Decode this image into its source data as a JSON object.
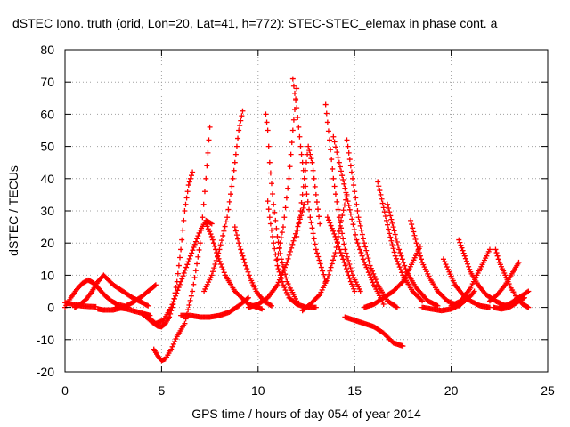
{
  "chart_data": {
    "type": "scatter",
    "title": "dSTEC Iono. truth (orid, Lon=20, Lat=41, h=772): STEC-STEC_elemax in phase cont. a",
    "xlabel": "GPS time / hours of day 054 of year 2014",
    "ylabel": "dSTEC  / TECUs",
    "xlim": [
      0,
      25
    ],
    "ylim": [
      -20,
      80
    ],
    "xticks": [
      0,
      5,
      10,
      15,
      20,
      25
    ],
    "yticks": [
      -20,
      -10,
      0,
      10,
      20,
      30,
      40,
      50,
      60,
      70,
      80
    ],
    "xtick_labels": [
      "0",
      "5",
      "10",
      "15",
      "20",
      "25"
    ],
    "ytick_labels": [
      "-20",
      "-10",
      "0",
      "10",
      "20",
      "30",
      "40",
      "50",
      "60",
      "70",
      "80"
    ],
    "grid": true,
    "legend": "none",
    "marker": "+",
    "color": "#ff0000",
    "series": [
      {
        "x": [
          0.0,
          0.4,
          0.8,
          1.2,
          1.6
        ],
        "y": [
          1.5,
          1.0,
          0.5,
          0.3,
          0.2
        ]
      },
      {
        "x": [
          0.0,
          0.3,
          0.6,
          0.9,
          1.2,
          1.5,
          1.8,
          2.1,
          2.4,
          2.7,
          3.0,
          3.3
        ],
        "y": [
          0.0,
          3.0,
          5.5,
          7.5,
          8.5,
          7.5,
          5.5,
          3.5,
          2.0,
          1.0,
          0.5,
          0.0
        ]
      },
      {
        "x": [
          0.5,
          0.8,
          1.1,
          1.4,
          1.7,
          2.0,
          2.5,
          3.0,
          3.5,
          4.0,
          4.3
        ],
        "y": [
          0.0,
          1.0,
          2.5,
          5.0,
          8.0,
          10.0,
          7.0,
          5.0,
          3.0,
          1.5,
          0.5
        ]
      },
      {
        "x": [
          1.7,
          2.0,
          2.5,
          3.0,
          3.5,
          4.0,
          4.5,
          4.7
        ],
        "y": [
          -0.5,
          -0.8,
          -0.8,
          0.0,
          1.5,
          3.5,
          6.0,
          7.0
        ]
      },
      {
        "x": [
          2.6,
          2.9,
          3.2,
          3.5,
          3.8,
          4.1,
          4.4
        ],
        "y": [
          0.0,
          -0.2,
          -0.5,
          -1.0,
          -1.5,
          -2.0,
          -2.5
        ]
      },
      {
        "x": [
          4.0,
          4.3,
          4.6,
          4.8,
          5.0,
          5.2,
          5.4,
          5.6,
          5.8,
          6.0,
          6.2,
          6.4,
          6.6
        ],
        "y": [
          -2.0,
          -3.5,
          -5.0,
          -5.8,
          -6.0,
          -5.0,
          -3.0,
          1.0,
          8.0,
          18.0,
          30.0,
          38.0,
          42.0
        ]
      },
      {
        "x": [
          4.6,
          4.8,
          5.0,
          5.2,
          5.5,
          5.8,
          6.2,
          6.6,
          7.0,
          7.3,
          7.5
        ],
        "y": [
          -13.0,
          -15.0,
          -16.5,
          -16.0,
          -13.0,
          -9.0,
          -5.0,
          5.0,
          20.0,
          40.0,
          56.0
        ]
      },
      {
        "x": [
          4.3,
          4.7,
          5.1,
          5.5,
          6.0,
          6.5,
          7.0,
          7.3,
          7.6
        ],
        "y": [
          -3.0,
          -5.0,
          -4.0,
          0.0,
          8.0,
          16.0,
          24.0,
          27.0,
          26.0
        ]
      },
      {
        "x": [
          6.0,
          6.5,
          7.0,
          7.5,
          8.0,
          8.5,
          9.0,
          9.5
        ],
        "y": [
          -2.5,
          -2.5,
          -3.0,
          -3.0,
          -2.5,
          -1.5,
          0.5,
          3.0
        ]
      },
      {
        "x": [
          7.2,
          7.6,
          8.0,
          8.4,
          8.7,
          9.0,
          9.2
        ],
        "y": [
          5.0,
          10.0,
          18.0,
          28.0,
          40.0,
          55.0,
          61.0
        ]
      },
      {
        "x": [
          7.3,
          7.6,
          7.9,
          8.3,
          8.8,
          9.5,
          10.2
        ],
        "y": [
          26.0,
          22.0,
          16.0,
          10.0,
          5.0,
          1.0,
          -0.5
        ]
      },
      {
        "x": [
          8.8,
          9.0,
          9.3,
          9.6,
          9.9,
          10.3,
          10.7
        ],
        "y": [
          25.0,
          20.0,
          14.0,
          9.0,
          5.0,
          2.0,
          0.5
        ]
      },
      {
        "x": [
          9.5,
          10.0,
          10.5,
          11.0,
          11.5,
          12.0,
          12.4
        ],
        "y": [
          0.0,
          1.0,
          3.0,
          7.0,
          14.0,
          24.0,
          32.0
        ]
      },
      {
        "x": [
          10.5,
          10.6,
          10.8,
          11.0,
          11.3,
          11.6,
          12.0,
          12.5,
          13.0
        ],
        "y": [
          33.0,
          28.0,
          20.0,
          13.0,
          7.0,
          3.0,
          1.0,
          0.0,
          0.0
        ]
      },
      {
        "x": [
          10.4,
          10.5,
          10.6,
          10.8,
          11.0,
          11.2,
          11.5,
          12.0
        ],
        "y": [
          60.0,
          55.0,
          45.0,
          32.0,
          22.0,
          15.0,
          8.0,
          2.0
        ]
      },
      {
        "x": [
          11.0,
          11.3,
          11.6,
          11.8,
          12.0
        ],
        "y": [
          15.0,
          25.0,
          40.0,
          55.0,
          68.0
        ]
      },
      {
        "x": [
          11.8,
          12.0,
          12.2,
          12.4,
          12.7,
          13.0,
          13.5
        ],
        "y": [
          71.0,
          62.0,
          50.0,
          40.0,
          28.0,
          18.0,
          8.0
        ]
      },
      {
        "x": [
          12.0,
          12.2,
          12.4,
          12.6,
          12.8,
          13.0,
          13.2
        ],
        "y": [
          22.0,
          30.0,
          40.0,
          50.0,
          45.0,
          35.0,
          26.0
        ]
      },
      {
        "x": [
          12.3,
          12.7,
          13.2,
          13.6,
          14.0,
          14.3,
          14.6
        ],
        "y": [
          -1.0,
          1.0,
          4.0,
          9.0,
          17.0,
          27.0,
          35.0
        ]
      },
      {
        "x": [
          13.5,
          13.7,
          13.9,
          14.2,
          14.5,
          14.9,
          15.3
        ],
        "y": [
          63.0,
          52.0,
          40.0,
          28.0,
          18.0,
          10.0,
          5.0
        ]
      },
      {
        "x": [
          13.6,
          14.0,
          14.4,
          14.8,
          15.0
        ],
        "y": [
          28.0,
          22.0,
          15.0,
          8.0,
          5.0
        ]
      },
      {
        "x": [
          13.9,
          14.2,
          14.5,
          14.8,
          15.1,
          15.5,
          16.0,
          16.5
        ],
        "y": [
          53.0,
          45.0,
          37.0,
          29.0,
          21.0,
          14.0,
          7.0,
          1.0
        ]
      },
      {
        "x": [
          14.6,
          14.8,
          15.0,
          15.2,
          15.5,
          15.8,
          16.2,
          16.7,
          17.2
        ],
        "y": [
          52.0,
          44.0,
          36.0,
          28.0,
          20.0,
          13.0,
          7.0,
          2.0,
          0.0
        ]
      },
      {
        "x": [
          14.5,
          15.0,
          15.5,
          16.0,
          16.5,
          17.0,
          17.5
        ],
        "y": [
          -3.0,
          -4.0,
          -5.0,
          -6.0,
          -8.0,
          -11.0,
          -12.0
        ]
      },
      {
        "x": [
          15.5,
          16.0,
          16.5,
          17.0,
          17.5,
          18.0,
          18.4
        ],
        "y": [
          0.0,
          1.0,
          3.0,
          5.0,
          8.0,
          14.0,
          19.0
        ]
      },
      {
        "x": [
          16.2,
          16.5,
          16.8,
          17.1,
          17.5,
          18.0,
          18.5
        ],
        "y": [
          39.0,
          31.0,
          23.0,
          16.0,
          10.0,
          5.0,
          2.0
        ]
      },
      {
        "x": [
          16.7,
          17.0,
          17.3,
          17.7,
          18.2,
          18.8,
          19.3
        ],
        "y": [
          32.0,
          25.0,
          18.0,
          11.0,
          6.0,
          2.0,
          0.5
        ]
      },
      {
        "x": [
          17.9,
          18.2,
          18.5,
          18.9,
          19.3,
          19.8,
          20.4
        ],
        "y": [
          27.0,
          20.0,
          14.0,
          9.0,
          5.0,
          2.0,
          0.5
        ]
      },
      {
        "x": [
          18.5,
          19.0,
          19.5,
          20.0,
          20.5,
          21.0,
          21.2
        ],
        "y": [
          0.0,
          -0.5,
          -1.0,
          -0.5,
          1.0,
          3.5,
          5.0
        ]
      },
      {
        "x": [
          19.6,
          19.9,
          20.2,
          20.6,
          21.0,
          21.5,
          22.0
        ],
        "y": [
          15.0,
          11.0,
          7.0,
          4.0,
          2.0,
          0.5,
          0.0
        ]
      },
      {
        "x": [
          20.4,
          20.7,
          21.0,
          21.4,
          21.8,
          22.3,
          22.8
        ],
        "y": [
          21.0,
          16.0,
          11.0,
          7.0,
          4.0,
          2.0,
          0.5
        ]
      },
      {
        "x": [
          20.0,
          20.5,
          21.0,
          21.5,
          22.0
        ],
        "y": [
          0.5,
          2.0,
          6.0,
          12.0,
          18.0
        ]
      },
      {
        "x": [
          22.2,
          22.6,
          23.0,
          23.4,
          23.8
        ],
        "y": [
          0.0,
          -0.5,
          0.0,
          1.5,
          3.0
        ]
      },
      {
        "x": [
          22.3,
          22.5,
          22.8,
          23.1,
          23.4,
          23.7,
          24.0
        ],
        "y": [
          18.0,
          14.0,
          10.0,
          6.0,
          3.0,
          1.0,
          0.0
        ]
      },
      {
        "x": [
          22.0,
          22.4,
          22.8,
          23.2,
          23.5
        ],
        "y": [
          2.0,
          4.0,
          7.0,
          11.0,
          14.0
        ]
      },
      {
        "x": [
          22.5,
          23.0,
          23.5,
          24.0
        ],
        "y": [
          0.0,
          1.0,
          3.0,
          5.0
        ]
      }
    ]
  }
}
